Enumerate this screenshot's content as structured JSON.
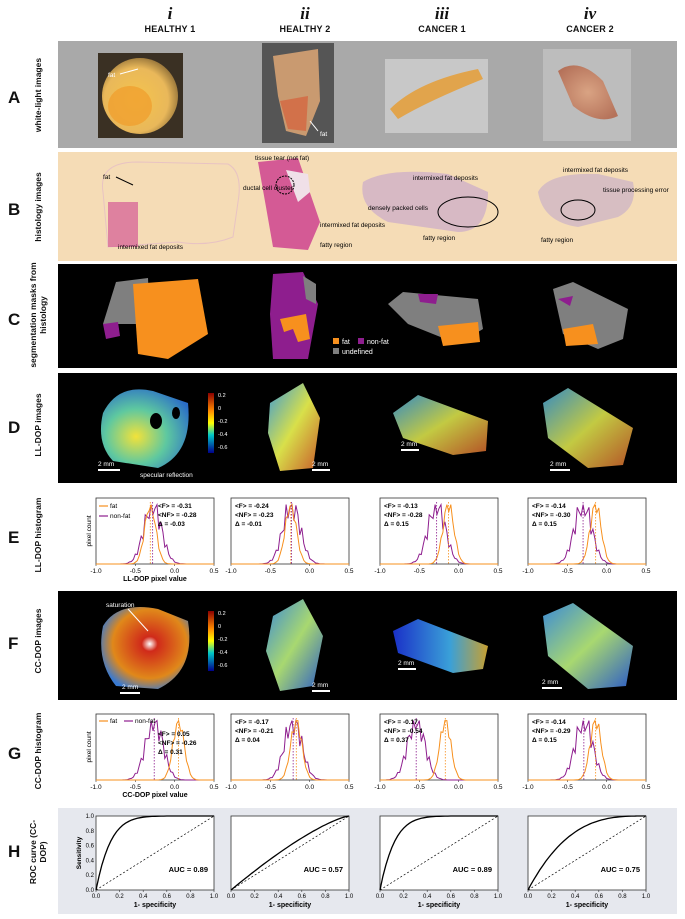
{
  "columns": [
    {
      "numeral": "i",
      "name": "HEALTHY 1"
    },
    {
      "numeral": "ii",
      "name": "HEALTHY 2"
    },
    {
      "numeral": "iii",
      "name": "CANCER 1"
    },
    {
      "numeral": "iv",
      "name": "CANCER 2"
    }
  ],
  "rows": [
    {
      "letter": "A",
      "label": "white-light images"
    },
    {
      "letter": "B",
      "label": "histology images"
    },
    {
      "letter": "C",
      "label": "segmentation masks from histology"
    },
    {
      "letter": "D",
      "label": "LL-DOP images"
    },
    {
      "letter": "E",
      "label": "LL-DOP histogram"
    },
    {
      "letter": "F",
      "label": "CC-DOP images"
    },
    {
      "letter": "G",
      "label": "CC-DOP histogram"
    },
    {
      "letter": "H",
      "label": "ROC curve (CC-DOP)"
    }
  ],
  "annotations": {
    "a_fat1": "fat",
    "a_fat2": "fat",
    "b_fat": "fat",
    "b_intermixed1": "intermixed fat deposits",
    "b_tear": "tissue tear (not fat)",
    "b_ductal": "ductal cell cluster",
    "b_intermixed2": "intermixed fat deposits",
    "b_fatty": "fatty region",
    "b_dense": "densely packed cells",
    "b_intermixed3": "intermixed fat deposits",
    "b_fatty3": "fatty region",
    "b_intermixed4": "intermixed fat deposits",
    "b_tpe": "tissue processing error",
    "b_fatty4": "fatty region",
    "d_specular": "specular reflection",
    "f_saturation": "saturation",
    "scale": "2 mm"
  },
  "legend_mask": {
    "fat": "fat",
    "nonfat": "non-fat",
    "undefined": "undefined"
  },
  "colors": {
    "fat": "#f7901e",
    "nonfat": "#8e1e8e",
    "undefined": "#7f7f7f",
    "band_bg": "#a9a9a9",
    "histo_bg": "#f5dcb6",
    "dark_bg": "#000000",
    "outer": "#d9dde6"
  },
  "colorbar_ticks": [
    "0.2",
    "0",
    "-0.2",
    "-0.4",
    "-0.6"
  ],
  "chart_data": [
    {
      "type": "line",
      "panel": "E-i",
      "xlabel": "LL-DOP pixel value",
      "ylabel": "pixel count",
      "xlim": [
        -1,
        0.5
      ],
      "xticks": [
        "-1.0",
        "-0.5",
        "0.0",
        "0.5"
      ],
      "legend": [
        "fat",
        "non-fat"
      ],
      "stats": {
        "F": "<F> = -0.31",
        "NF": "<NF> = -0.28",
        "D": "Δ = -0.03"
      },
      "fat_mean": -0.31,
      "nonfat_mean": -0.28
    },
    {
      "type": "line",
      "panel": "E-ii",
      "xlim": [
        -1,
        0.5
      ],
      "xticks": [
        "-1.0",
        "-0.5",
        "0.0",
        "0.5"
      ],
      "stats": {
        "F": "<F> = -0.24",
        "NF": "<NF> = -0.23",
        "D": "Δ = -0.01"
      },
      "fat_mean": -0.24,
      "nonfat_mean": -0.23
    },
    {
      "type": "line",
      "panel": "E-iii",
      "xlim": [
        -1,
        0.5
      ],
      "xticks": [
        "-1.0",
        "-0.5",
        "0.0",
        "0.5"
      ],
      "stats": {
        "F": "<F> = -0.13",
        "NF": "<NF> = -0.28",
        "D": "Δ = 0.15"
      },
      "fat_mean": -0.13,
      "nonfat_mean": -0.28
    },
    {
      "type": "line",
      "panel": "E-iv",
      "xlim": [
        -1,
        0.5
      ],
      "xticks": [
        "-1.0",
        "-0.5",
        "0.0",
        "0.5"
      ],
      "stats": {
        "F": "<F> = -0.14",
        "NF": "<NF> = -0.30",
        "D": "Δ = 0.15"
      },
      "fat_mean": -0.14,
      "nonfat_mean": -0.3
    },
    {
      "type": "line",
      "panel": "G-i",
      "xlabel": "CC-DOP pixel value",
      "ylabel": "pixel count",
      "xlim": [
        -1,
        0.5
      ],
      "xticks": [
        "-1.0",
        "-0.5",
        "0.0",
        "0.5"
      ],
      "legend": [
        "fat",
        "non-fat"
      ],
      "stats": {
        "F": "<F> = 0.05",
        "NF": "<NF> = -0.26",
        "D": "Δ = 0.31"
      },
      "fat_mean": 0.05,
      "nonfat_mean": -0.26
    },
    {
      "type": "line",
      "panel": "G-ii",
      "xlim": [
        -1,
        0.5
      ],
      "xticks": [
        "-1.0",
        "-0.5",
        "0.0",
        "0.5"
      ],
      "stats": {
        "F": "<F> = -0.17",
        "NF": "<NF> = -0.21",
        "D": "Δ = 0.04"
      },
      "fat_mean": -0.17,
      "nonfat_mean": -0.21
    },
    {
      "type": "line",
      "panel": "G-iii",
      "xlim": [
        -1,
        0.5
      ],
      "xticks": [
        "-1.0",
        "-0.5",
        "0.0",
        "0.5"
      ],
      "stats": {
        "F": "<F> = -0.17",
        "NF": "<NF> = -0.54",
        "D": "Δ = 0.37"
      },
      "fat_mean": -0.17,
      "nonfat_mean": -0.54
    },
    {
      "type": "line",
      "panel": "G-iv",
      "xlim": [
        -1,
        0.5
      ],
      "xticks": [
        "-1.0",
        "-0.5",
        "0.0",
        "0.5"
      ],
      "stats": {
        "F": "<F> = -0.14",
        "NF": "<NF> = -0.29",
        "D": "Δ = 0.15"
      },
      "fat_mean": -0.14,
      "nonfat_mean": -0.29
    },
    {
      "type": "line",
      "panel": "H-i",
      "xlabel": "1- specificity",
      "ylabel": "Sensitivity",
      "xlim": [
        0,
        1
      ],
      "ylim": [
        0,
        1
      ],
      "xticks": [
        "0.0",
        "0.2",
        "0.4",
        "0.6",
        "0.8",
        "1.0"
      ],
      "yticks": [
        "0.0",
        "0.2",
        "0.4",
        "0.6",
        "0.8",
        "1.0"
      ],
      "auc": "AUC = 0.89",
      "auc_value": 0.89
    },
    {
      "type": "line",
      "panel": "H-ii",
      "xlabel": "1- specificity",
      "xlim": [
        0,
        1
      ],
      "ylim": [
        0,
        1
      ],
      "xticks": [
        "0.0",
        "0.2",
        "0.4",
        "0.6",
        "0.8",
        "1.0"
      ],
      "auc": "AUC = 0.57",
      "auc_value": 0.57
    },
    {
      "type": "line",
      "panel": "H-iii",
      "xlabel": "1- specificity",
      "xlim": [
        0,
        1
      ],
      "ylim": [
        0,
        1
      ],
      "xticks": [
        "0.0",
        "0.2",
        "0.4",
        "0.6",
        "0.8",
        "1.0"
      ],
      "auc": "AUC = 0.89",
      "auc_value": 0.89
    },
    {
      "type": "line",
      "panel": "H-iv",
      "xlabel": "1- specificity",
      "xlim": [
        0,
        1
      ],
      "ylim": [
        0,
        1
      ],
      "xticks": [
        "0.0",
        "0.2",
        "0.4",
        "0.6",
        "0.8",
        "1.0"
      ],
      "auc": "AUC = 0.75",
      "auc_value": 0.75
    }
  ]
}
